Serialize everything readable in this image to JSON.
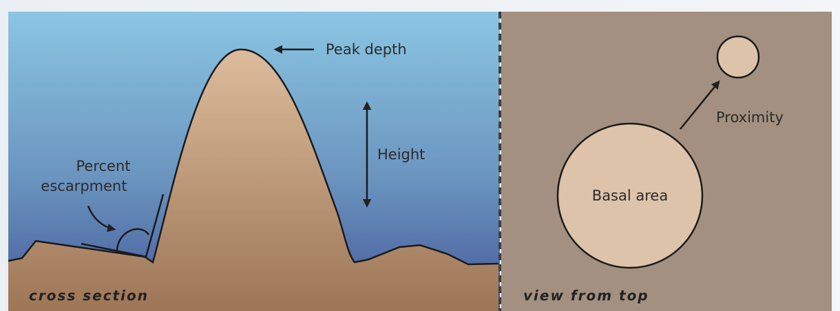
{
  "cross_section": {
    "caption": "cross section",
    "labels": {
      "peak_depth": "Peak depth",
      "height": "Height",
      "percent_escarpment": [
        "Percent",
        "escarpment"
      ]
    }
  },
  "top_view": {
    "caption": "view from top",
    "labels": {
      "basal_area": "Basal area",
      "proximity": "Proximity"
    }
  }
}
